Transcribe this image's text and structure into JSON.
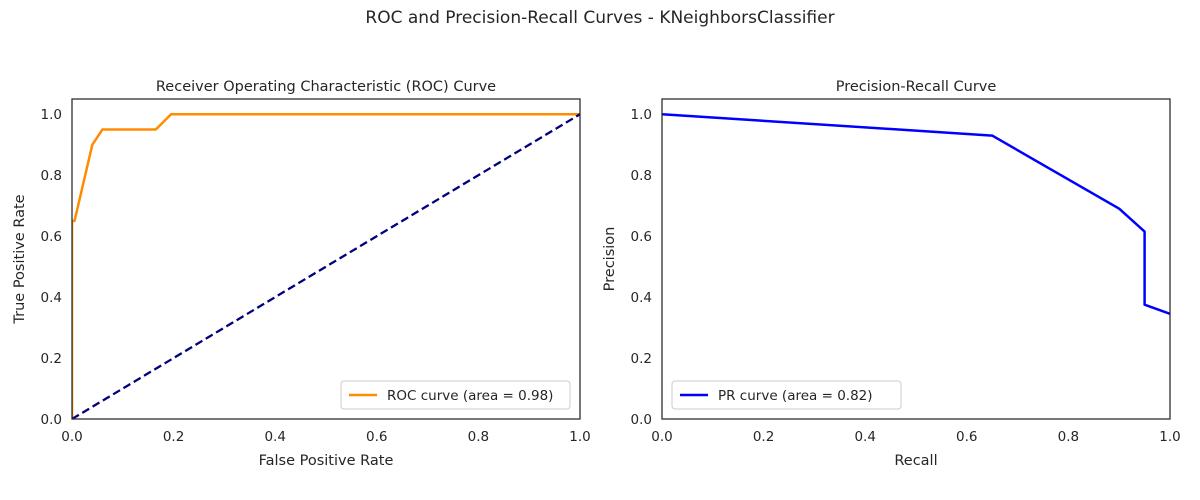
{
  "figure": {
    "suptitle": "ROC and Precision-Recall Curves - KNeighborsClassifier"
  },
  "chart_data": [
    {
      "type": "line",
      "title": "Receiver Operating Characteristic (ROC) Curve",
      "xlabel": "False Positive Rate",
      "ylabel": "True Positive Rate",
      "xlim": [
        0.0,
        1.0
      ],
      "ylim": [
        0.0,
        1.05
      ],
      "xticks": [
        "0.0",
        "0.2",
        "0.4",
        "0.6",
        "0.8",
        "1.0"
      ],
      "yticks": [
        "0.0",
        "0.2",
        "0.4",
        "0.6",
        "0.8",
        "1.0"
      ],
      "grid": false,
      "legend_position": "lower-right",
      "series": [
        {
          "name": "ROC curve (area = 0.98)",
          "color": "#ff8c00",
          "style": "solid",
          "in_legend": true,
          "x": [
            0.0,
            0.0,
            0.005,
            0.04,
            0.06,
            0.165,
            0.195,
            1.0
          ],
          "y": [
            0.0,
            0.65,
            0.65,
            0.9,
            0.95,
            0.95,
            1.0,
            1.0
          ]
        },
        {
          "color": "#000080",
          "style": "dashed",
          "in_legend": false,
          "x": [
            0.0,
            1.0
          ],
          "y": [
            0.0,
            1.0
          ]
        }
      ]
    },
    {
      "type": "line",
      "title": "Precision-Recall Curve",
      "xlabel": "Recall",
      "ylabel": "Precision",
      "xlim": [
        0.0,
        1.0
      ],
      "ylim": [
        0.0,
        1.05
      ],
      "xticks": [
        "0.0",
        "0.2",
        "0.4",
        "0.6",
        "0.8",
        "1.0"
      ],
      "yticks": [
        "0.0",
        "0.2",
        "0.4",
        "0.6",
        "0.8",
        "1.0"
      ],
      "grid": false,
      "legend_position": "lower-left",
      "series": [
        {
          "name": "PR curve (area = 0.82)",
          "color": "#0000ff",
          "style": "solid",
          "in_legend": true,
          "x": [
            0.0,
            0.65,
            0.9,
            0.95,
            0.95,
            1.0
          ],
          "y": [
            1.0,
            0.93,
            0.69,
            0.615,
            0.375,
            0.345
          ]
        }
      ]
    }
  ]
}
